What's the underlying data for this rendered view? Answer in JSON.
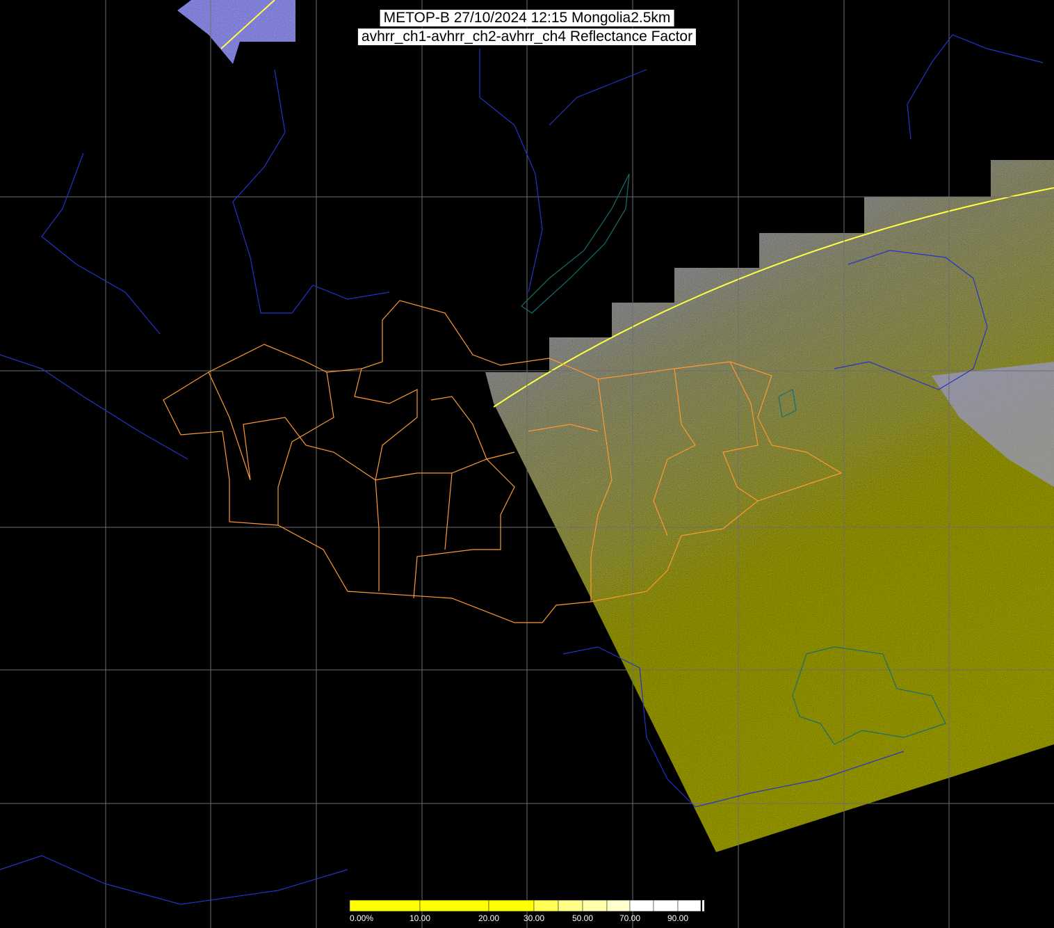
{
  "header": {
    "title_line1": "METOP-B 27/10/2024 12:15 Mongolia2.5km",
    "title_line2": "avhrr_ch1-avhrr_ch2-avhrr_ch4 Reflectance Factor"
  },
  "colorbar": {
    "labels": [
      "0.00%",
      "10.00",
      "20.00",
      "30.00",
      "50.00",
      "70.00",
      "90.00"
    ],
    "colors": [
      "#ffff00",
      "#ffff00",
      "#ffff00",
      "#ffff55",
      "#ffff88",
      "#ffffaa",
      "#ffffcc",
      "#ffffff",
      "#ffffff",
      "#ffffff"
    ]
  },
  "map": {
    "background": "#000000",
    "grid_color": "#6e6e6e",
    "border_color": "#ff9933",
    "river_color": "#2233cc",
    "lake_color": "#1a6e6e",
    "swath_colors": [
      "#9a9ae8",
      "#8f8f5a",
      "#a8a822"
    ],
    "orbit_track_color": "#ffff44"
  }
}
